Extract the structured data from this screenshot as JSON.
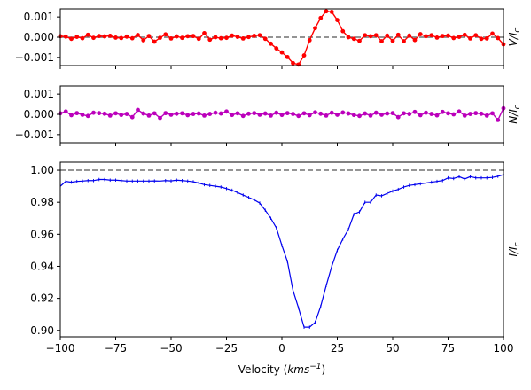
{
  "chart_data": [
    {
      "type": "line",
      "panel": "stokes-v",
      "ylabel": "V/I_c",
      "ylabel_main": "V/I",
      "ylabel_sub": "c",
      "xlim": [
        -100,
        100
      ],
      "ylim": [
        -0.0014,
        0.0014
      ],
      "yticks": [
        -0.001,
        0.0,
        0.001
      ],
      "ytick_labels": [
        "−0.001",
        "0.000",
        "0.001"
      ],
      "reference_line": 0.0,
      "series_color": "#ff0000",
      "x": [
        -100,
        -97.5,
        -95,
        -92.5,
        -90,
        -87.5,
        -85,
        -82.5,
        -80,
        -77.5,
        -75,
        -72.5,
        -70,
        -67.5,
        -65,
        -62.5,
        -60,
        -57.5,
        -55,
        -52.5,
        -50,
        -47.5,
        -45,
        -42.5,
        -40,
        -37.5,
        -35,
        -32.5,
        -30,
        -27.5,
        -25,
        -22.5,
        -20,
        -17.5,
        -15,
        -12.5,
        -10,
        -7.5,
        -5,
        -2.5,
        0,
        2.5,
        5,
        7.5,
        10,
        12.5,
        15,
        17.5,
        20,
        22.5,
        25,
        27.5,
        30,
        32.5,
        35,
        37.5,
        40,
        42.5,
        45,
        47.5,
        50,
        52.5,
        55,
        57.5,
        60,
        62.5,
        65,
        67.5,
        70,
        72.5,
        75,
        77.5,
        80,
        82.5,
        85,
        87.5,
        90,
        92.5,
        95,
        97.5,
        100
      ],
      "values": [
        5e-05,
        3e-05,
        -8e-05,
        2e-05,
        -5e-05,
        0.00012,
        -3e-05,
        6e-05,
        4e-05,
        7e-05,
        -2e-05,
        -4e-05,
        3e-05,
        -5e-05,
        0.00011,
        -0.00015,
        6e-05,
        -0.00022,
        -3e-05,
        0.00014,
        -6e-05,
        4e-05,
        -3e-05,
        5e-05,
        6e-05,
        -8e-05,
        0.0002,
        -0.00012,
        0.0,
        -5e-05,
        -3e-05,
        8e-05,
        2e-05,
        -6e-05,
        1e-05,
        7e-05,
        0.0001,
        -8e-05,
        -0.00032,
        -0.00055,
        -0.00075,
        -0.00098,
        -0.00128,
        -0.00135,
        -0.0009,
        -0.00015,
        0.00045,
        0.00095,
        0.00128,
        0.00125,
        0.00085,
        0.0003,
        0.0,
        -8e-05,
        -0.00018,
        0.0001,
        5e-05,
        0.0001,
        -0.0002,
        8e-05,
        -0.00018,
        0.00012,
        -0.0002,
        8e-05,
        -0.00014,
        0.00015,
        5e-05,
        0.0001,
        -2e-05,
        6e-05,
        8e-05,
        -4e-05,
        2e-05,
        0.00012,
        -6e-05,
        0.0001,
        -8e-05,
        -6e-05,
        0.00018,
        -4e-05,
        -0.00035
      ]
    },
    {
      "type": "line",
      "panel": "null-n",
      "ylabel": "N/I_c",
      "ylabel_main": "N/I",
      "ylabel_sub": "c",
      "xlim": [
        -100,
        100
      ],
      "ylim": [
        -0.0014,
        0.0014
      ],
      "yticks": [
        -0.001,
        0.0,
        0.001
      ],
      "ytick_labels": [
        "−0.001",
        "0.000",
        "0.001"
      ],
      "series_color": "#bb00bb",
      "x": [
        -100,
        -97.5,
        -95,
        -92.5,
        -90,
        -87.5,
        -85,
        -82.5,
        -80,
        -77.5,
        -75,
        -72.5,
        -70,
        -67.5,
        -65,
        -62.5,
        -60,
        -57.5,
        -55,
        -52.5,
        -50,
        -47.5,
        -45,
        -42.5,
        -40,
        -37.5,
        -35,
        -32.5,
        -30,
        -27.5,
        -25,
        -22.5,
        -20,
        -17.5,
        -15,
        -12.5,
        -10,
        -7.5,
        -5,
        -2.5,
        0,
        2.5,
        5,
        7.5,
        10,
        12.5,
        15,
        17.5,
        20,
        22.5,
        25,
        27.5,
        30,
        32.5,
        35,
        37.5,
        40,
        42.5,
        45,
        47.5,
        50,
        52.5,
        55,
        57.5,
        60,
        62.5,
        65,
        67.5,
        70,
        72.5,
        75,
        77.5,
        80,
        82.5,
        85,
        87.5,
        90,
        92.5,
        95,
        97.5,
        100
      ],
      "values": [
        5e-05,
        0.00014,
        -4e-05,
        6e-05,
        -2e-05,
        -8e-05,
        8e-05,
        6e-05,
        3e-05,
        -6e-05,
        5e-05,
        -3e-05,
        2e-05,
        -0.00014,
        0.00022,
        4e-05,
        -6e-05,
        5e-05,
        -0.00018,
        6e-05,
        -2e-05,
        3e-05,
        5e-05,
        -4e-05,
        2e-05,
        4e-05,
        -6e-05,
        2e-05,
        8e-05,
        4e-05,
        0.00014,
        -3e-05,
        5e-05,
        -8e-05,
        3e-05,
        6e-05,
        -2e-05,
        4e-05,
        -6e-05,
        8e-05,
        -3e-05,
        6e-05,
        2e-05,
        -8e-05,
        5e-05,
        -4e-05,
        0.0001,
        3e-05,
        -6e-05,
        8e-05,
        -2e-05,
        9e-05,
        4e-05,
        -3e-05,
        -8e-05,
        4e-05,
        -6e-05,
        8e-05,
        -2e-05,
        4e-05,
        6e-05,
        -0.00014,
        5e-05,
        2e-05,
        0.00012,
        -4e-05,
        8e-05,
        2e-05,
        -5e-05,
        0.00012,
        5e-05,
        0.0,
        0.00014,
        -6e-05,
        2e-05,
        6e-05,
        3e-05,
        -6e-05,
        5e-05,
        -0.00028,
        0.0003
      ]
    },
    {
      "type": "line",
      "panel": "intensity-i",
      "ylabel": "I/I_c",
      "ylabel_main": "I/I",
      "ylabel_sub": "c",
      "xlabel": "Velocity (kms^-1)",
      "xlabel_prefix": "Velocity (",
      "xlabel_unit": "kms",
      "xlabel_exp": "−1",
      "xlabel_suffix": ")",
      "xlim": [
        -100,
        100
      ],
      "ylim": [
        0.896,
        1.005
      ],
      "yticks": [
        0.9,
        0.92,
        0.94,
        0.96,
        0.98,
        1.0
      ],
      "ytick_labels": [
        "0.90",
        "0.92",
        "0.94",
        "0.96",
        "0.98",
        "1.00"
      ],
      "xticks": [
        -100,
        -75,
        -50,
        -25,
        0,
        25,
        50,
        75,
        100
      ],
      "xtick_labels": [
        "−100",
        "−75",
        "−50",
        "−25",
        "0",
        "25",
        "50",
        "75",
        "100"
      ],
      "reference_line": 1.0,
      "series_color": "#0000ee",
      "x": [
        -100,
        -97.5,
        -95,
        -92.5,
        -90,
        -87.5,
        -85,
        -82.5,
        -80,
        -77.5,
        -75,
        -72.5,
        -70,
        -67.5,
        -65,
        -62.5,
        -60,
        -57.5,
        -55,
        -52.5,
        -50,
        -47.5,
        -45,
        -42.5,
        -40,
        -37.5,
        -35,
        -32.5,
        -30,
        -27.5,
        -25,
        -22.5,
        -20,
        -17.5,
        -15,
        -12.5,
        -10,
        -7.5,
        -5,
        -2.5,
        0,
        2.5,
        5,
        7.5,
        10,
        12.5,
        15,
        17.5,
        20,
        22.5,
        25,
        27.5,
        30,
        32.5,
        35,
        37.5,
        40,
        42.5,
        45,
        47.5,
        50,
        52.5,
        55,
        57.5,
        60,
        62.5,
        65,
        67.5,
        70,
        72.5,
        75,
        77.5,
        80,
        82.5,
        85,
        87.5,
        90,
        92.5,
        95,
        97.5,
        100
      ],
      "values": [
        0.99,
        0.993,
        0.9925,
        0.993,
        0.9932,
        0.9935,
        0.9935,
        0.9942,
        0.9942,
        0.9938,
        0.9938,
        0.9935,
        0.9932,
        0.9932,
        0.9932,
        0.9932,
        0.9932,
        0.9933,
        0.9932,
        0.9935,
        0.9933,
        0.9938,
        0.9935,
        0.9932,
        0.9928,
        0.992,
        0.991,
        0.9905,
        0.99,
        0.9895,
        0.9885,
        0.9875,
        0.986,
        0.9845,
        0.983,
        0.9815,
        0.9795,
        0.975,
        0.97,
        0.964,
        0.953,
        0.943,
        0.925,
        0.914,
        0.902,
        0.902,
        0.905,
        0.915,
        0.928,
        0.94,
        0.95,
        0.957,
        0.963,
        0.9725,
        0.974,
        0.98,
        0.98,
        0.9845,
        0.984,
        0.9855,
        0.987,
        0.988,
        0.9895,
        0.9905,
        0.991,
        0.9915,
        0.992,
        0.9925,
        0.993,
        0.9935,
        0.9952,
        0.9948,
        0.996,
        0.9945,
        0.996,
        0.9952,
        0.9952,
        0.9952,
        0.9955,
        0.9962,
        0.9972
      ]
    }
  ]
}
